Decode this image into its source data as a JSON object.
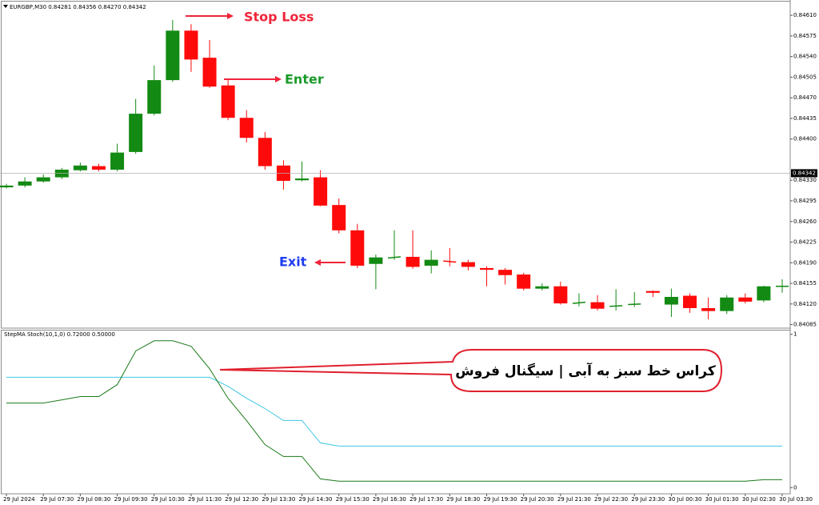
{
  "chart_data": [
    {
      "type": "candlestick",
      "title": "EURGBP,M30  0.84281 0.84356 0.84270 0.84342",
      "categories": [
        "29 Jul 2024",
        null,
        "29 Jul 07:30",
        null,
        "29 Jul 08:30",
        null,
        "29 Jul 09:30",
        null,
        "29 Jul 10:30",
        null,
        "29 Jul 11:30",
        null,
        "29 Jul 12:30",
        null,
        "29 Jul 13:30",
        null,
        "29 Jul 14:30",
        null,
        "29 Jul 15:30",
        null,
        "29 Jul 16:30",
        null,
        "29 Jul 17:30",
        null,
        "29 Jul 18:30",
        null,
        "29 Jul 19:30",
        null,
        "29 Jul 20:30",
        null,
        "29 Jul 21:30",
        null,
        "29 Jul 22:30",
        null,
        "29 Jul 23:30",
        null,
        "30 Jul 00:30",
        null,
        "30 Jul 01:30",
        null,
        "30 Jul 02:30",
        null,
        "30 Jul 03:30"
      ],
      "open": [
        0.84318,
        0.84321,
        0.84328,
        0.84335,
        0.84347,
        0.84354,
        0.84348,
        0.84378,
        0.84443,
        0.845,
        0.84584,
        0.84538,
        0.84491,
        0.84436,
        0.84402,
        0.84355,
        0.8433,
        0.84335,
        0.84288,
        0.84245,
        0.84188,
        0.84198,
        0.842,
        0.84185,
        0.84193,
        0.84191,
        0.84181,
        0.84178,
        0.8417,
        0.84146,
        0.8415,
        0.84121,
        0.84123,
        0.84116,
        0.84119,
        0.84142,
        0.84119,
        0.84134,
        0.84113,
        0.84108,
        0.84131,
        0.84126,
        0.8415
      ],
      "high": [
        0.84324,
        0.84335,
        0.8434,
        0.84351,
        0.8436,
        0.84358,
        0.84392,
        0.84468,
        0.84525,
        0.84602,
        0.84595,
        0.84568,
        0.845,
        0.84449,
        0.84412,
        0.84364,
        0.84362,
        0.84347,
        0.84299,
        0.84256,
        0.84204,
        0.84245,
        0.84245,
        0.84211,
        0.84215,
        0.84195,
        0.84184,
        0.84181,
        0.84173,
        0.84155,
        0.84158,
        0.84138,
        0.84135,
        0.84145,
        0.8414,
        0.84143,
        0.84146,
        0.84138,
        0.84131,
        0.84135,
        0.84138,
        0.84151,
        0.84162
      ],
      "low": [
        0.84316,
        0.84318,
        0.84326,
        0.84332,
        0.84345,
        0.84345,
        0.84345,
        0.84375,
        0.8444,
        0.84497,
        0.84514,
        0.84487,
        0.84432,
        0.84394,
        0.84348,
        0.84314,
        0.84328,
        0.84286,
        0.8424,
        0.84181,
        0.84145,
        0.84195,
        0.8418,
        0.84172,
        0.84184,
        0.84177,
        0.8415,
        0.84153,
        0.84143,
        0.84143,
        0.84119,
        0.84116,
        0.84109,
        0.84109,
        0.84115,
        0.84132,
        0.84098,
        0.84105,
        0.84094,
        0.84103,
        0.84121,
        0.84123,
        0.84139
      ],
      "close": [
        0.84321,
        0.84328,
        0.84335,
        0.84348,
        0.84355,
        0.84348,
        0.84377,
        0.84443,
        0.845,
        0.84584,
        0.84535,
        0.84489,
        0.84436,
        0.84402,
        0.84354,
        0.84329,
        0.84333,
        0.84287,
        0.84245,
        0.84185,
        0.84199,
        0.842,
        0.84183,
        0.84195,
        0.84191,
        0.84183,
        0.84178,
        0.84169,
        0.84146,
        0.8415,
        0.84121,
        0.84123,
        0.84112,
        0.84117,
        0.8412,
        0.84139,
        0.84132,
        0.84113,
        0.84108,
        0.84131,
        0.84124,
        0.8415,
        0.8415
      ],
      "up_color": "#138a13",
      "down_color": "#ff0a0a",
      "ylim": [
        0.84079,
        0.84636
      ],
      "yticks": [
        {
          "value": 0.8461,
          "label": "0.84610"
        },
        0.84575,
        {
          "value": 0.8454,
          "label": "0.84540"
        },
        0.84505,
        {
          "value": 0.8447,
          "label": "0.84470"
        },
        0.84435,
        {
          "value": 0.844,
          "label": "0.84400"
        },
        {
          "value": 0.8433,
          "label": "0.84330"
        },
        0.84295,
        {
          "value": 0.8426,
          "label": "0.84260"
        },
        0.84225,
        {
          "value": 0.8419,
          "label": "0.84190"
        },
        0.84155,
        {
          "value": 0.8412,
          "label": "0.84120"
        },
        0.84085
      ],
      "last_price": 0.84342,
      "annotations": [
        {
          "text": "Stop Loss",
          "color": "#f0243a"
        },
        {
          "text": "Enter",
          "color": "#1a9a2a"
        },
        {
          "text": "Exit",
          "color": "#1e3cf0"
        }
      ]
    },
    {
      "type": "line",
      "title": "StepMA Stoch(10,1,0) 0.72000 0.50000",
      "series": [
        {
          "color": "#3ec8e4",
          "values": [
            0.72,
            0.72,
            0.72,
            0.72,
            0.72,
            0.72,
            0.72,
            0.72,
            0.72,
            0.72,
            0.72,
            0.72,
            0.661,
            0.583,
            0.516,
            0.438,
            0.438,
            0.292,
            0.271,
            0.271,
            0.271,
            0.271,
            0.271,
            0.271,
            0.271,
            0.271,
            0.271,
            0.271,
            0.271,
            0.271,
            0.271,
            0.271,
            0.271,
            0.271,
            0.271,
            0.271,
            0.271,
            0.271,
            0.271,
            0.271,
            0.271,
            0.271,
            0.271
          ]
        },
        {
          "color": "#1a7a1a",
          "values": [
            0.552,
            0.552,
            0.552,
            0.573,
            0.594,
            0.594,
            0.672,
            0.891,
            0.958,
            0.958,
            0.922,
            0.776,
            0.583,
            0.438,
            0.281,
            0.203,
            0.203,
            0.057,
            0.042,
            0.042,
            0.042,
            0.042,
            0.042,
            0.042,
            0.042,
            0.042,
            0.042,
            0.042,
            0.042,
            0.042,
            0.042,
            0.042,
            0.042,
            0.042,
            0.042,
            0.042,
            0.042,
            0.042,
            0.042,
            0.042,
            0.042,
            0.052,
            0.052
          ]
        }
      ],
      "ylim": [
        -0.04,
        1.03
      ],
      "yticks": [
        0,
        1
      ],
      "callout": "کراس خط سبز به آبی | سیگنال فروش"
    }
  ]
}
